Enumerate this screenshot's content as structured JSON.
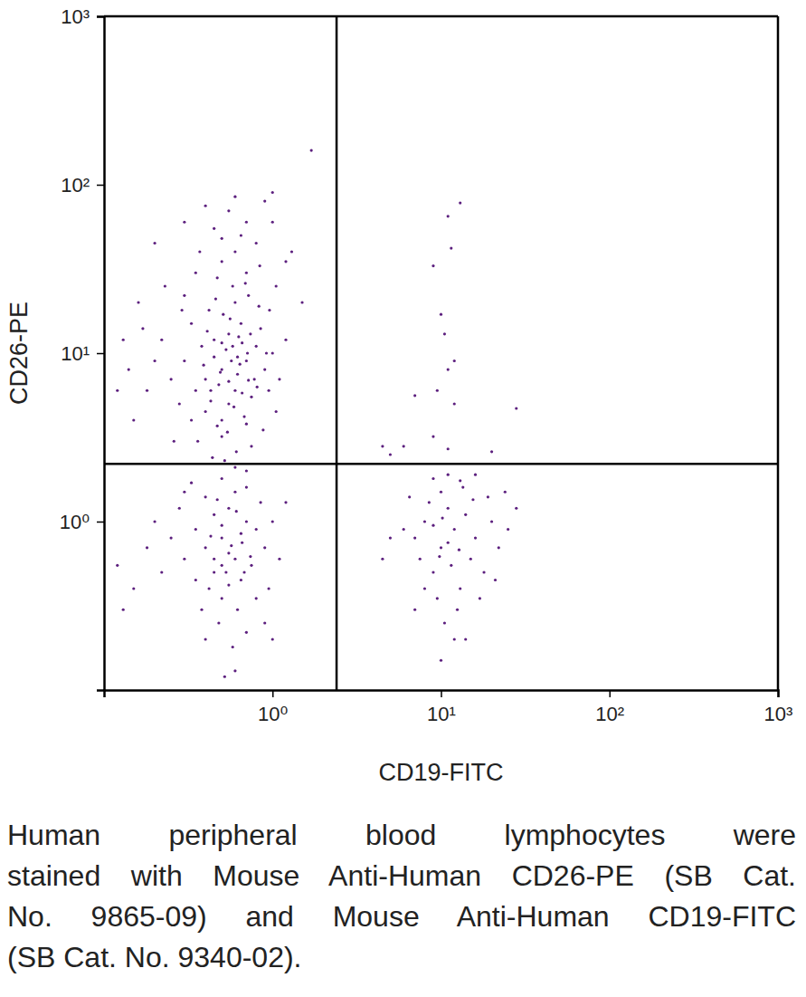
{
  "chart_data": {
    "type": "scatter",
    "x_label": "CD19-FITC",
    "y_label": "CD26-PE",
    "caption": [
      "Human peripheral blood lymphocytes were",
      "stained with Mouse Anti-Human CD26-PE (SB Cat.",
      "No. 9865-09) and Mouse Anti-Human CD19-FITC",
      "(SB Cat. No. 9340-02)."
    ],
    "log": true,
    "color": "#5c1f7e",
    "marker": "dot",
    "xlim": [
      0.1,
      1000
    ],
    "ylim": [
      0.1,
      1000
    ],
    "xticks": [
      {
        "value": 1,
        "label": "10⁰"
      },
      {
        "value": 10,
        "label": "10¹"
      },
      {
        "value": 100,
        "label": "10²"
      },
      {
        "value": 1000,
        "label": "10³"
      }
    ],
    "yticks": [
      {
        "value": 1,
        "label": "10⁰"
      },
      {
        "value": 10,
        "label": "10¹"
      },
      {
        "value": 100,
        "label": "10²"
      },
      {
        "value": 1000,
        "label": "10³"
      }
    ],
    "quadrant_x": 2.4,
    "quadrant_y": 2.2,
    "x": [
      0.5,
      0.6,
      0.45,
      0.7,
      0.55,
      0.4,
      0.65,
      0.8,
      0.5,
      0.35,
      0.6,
      0.75,
      0.9,
      0.45,
      0.55,
      0.5,
      0.7,
      0.4,
      0.3,
      0.62,
      0.48,
      0.85,
      0.58,
      0.7,
      0.42,
      0.53,
      0.66,
      0.38,
      0.95,
      1.0,
      0.28,
      0.25,
      0.22,
      0.33,
      0.6,
      0.5,
      0.8,
      0.45,
      0.7,
      0.55,
      0.4,
      0.9,
      1.0,
      0.65,
      0.35,
      0.3,
      0.2,
      0.18,
      0.15,
      0.17,
      0.72,
      0.47,
      0.83,
      0.56,
      0.61,
      0.44,
      0.75,
      0.36,
      0.52,
      0.88,
      1.05,
      1.1,
      1.2,
      1.05,
      1.2,
      0.78,
      0.68,
      0.43,
      0.57,
      0.63,
      0.51,
      0.74,
      0.39,
      0.47,
      0.59,
      0.81,
      0.92,
      0.33,
      0.26,
      0.55,
      0.49,
      0.64,
      0.71,
      0.41,
      0.58,
      0.46,
      0.69,
      0.37,
      0.84,
      0.96,
      0.29,
      0.23,
      0.13,
      0.16,
      0.14,
      0.2,
      0.3,
      0.6,
      0.5,
      1.0,
      1.3,
      1.5,
      1.7,
      0.12,
      0.54,
      0.66,
      0.43,
      0.72,
      0.5,
      0.62,
      0.5,
      0.6,
      0.45,
      0.7,
      0.55,
      0.4,
      0.65,
      0.8,
      0.5,
      0.35,
      0.6,
      0.75,
      0.9,
      0.45,
      0.55,
      0.5,
      0.7,
      0.4,
      0.3,
      0.62,
      0.48,
      0.85,
      0.58,
      0.7,
      0.42,
      0.53,
      0.66,
      0.38,
      0.95,
      1.0,
      0.28,
      0.25,
      0.22,
      0.33,
      0.6,
      0.5,
      0.8,
      0.45,
      0.7,
      0.55,
      0.4,
      0.9,
      1.1,
      0.65,
      0.35,
      0.2,
      0.18,
      0.15,
      0.12,
      0.13,
      0.52,
      0.6,
      0.47,
      0.57,
      0.43,
      0.74,
      0.61,
      0.5,
      0.68,
      0.3,
      1.2,
      1.0,
      10,
      12,
      8,
      15,
      9,
      11,
      13,
      7,
      10,
      14,
      9.5,
      11.5,
      6,
      16,
      18,
      12.5,
      8.5,
      10.5,
      13.5,
      7.5,
      20,
      22,
      25,
      28,
      5,
      4.5,
      9,
      11,
      12,
      10,
      14,
      17,
      19,
      6.5,
      8,
      11,
      9.8,
      12.8,
      10.2,
      15.5,
      7,
      13,
      24,
      21,
      16,
      9,
      11,
      13,
      11.5,
      9,
      10,
      10.5,
      12,
      11,
      7,
      9.5,
      12,
      28,
      9,
      11,
      4.5,
      6,
      5,
      20
    ],
    "values": [
      8,
      6,
      12,
      9,
      5,
      7,
      15,
      11,
      4,
      6,
      20,
      5.5,
      8,
      9.5,
      13,
      3.2,
      3.8,
      4.5,
      9,
      7.5,
      6.5,
      14,
      25,
      30,
      18,
      10.5,
      11.5,
      11,
      6,
      10,
      5,
      7,
      12,
      15,
      40,
      35,
      45,
      55,
      60,
      70,
      75,
      80,
      90,
      50,
      30,
      22,
      9,
      6,
      4,
      14,
      22,
      28,
      19,
      16,
      2.6,
      2.4,
      2.8,
      3,
      2.3,
      3.5,
      4.5,
      7,
      12,
      25,
      35,
      7,
      4.2,
      5.2,
      9,
      12.5,
      17,
      13,
      8.5,
      3.7,
      4.8,
      6.3,
      10,
      4,
      3,
      6.8,
      7.7,
      8.6,
      10,
      13.5,
      11,
      21,
      26,
      40,
      33,
      18,
      18,
      25,
      12,
      20,
      8,
      45,
      60,
      85,
      48,
      60,
      40,
      20,
      160,
      6,
      3.4,
      5.8,
      6,
      6.9,
      11.5,
      9.5,
      0.8,
      0.6,
      0.5,
      1.0,
      1.2,
      0.7,
      0.45,
      0.9,
      0.35,
      0.9,
      1.5,
      0.55,
      0.7,
      1.1,
      0.65,
      1.8,
      2.0,
      1.4,
      0.6,
      0.3,
      0.25,
      1.3,
      0.18,
      0.22,
      0.4,
      0.5,
      0.75,
      0.3,
      0.4,
      1.0,
      1.2,
      0.8,
      0.5,
      1.7,
      2.1,
      0.95,
      0.35,
      0.6,
      1.6,
      0.42,
      0.2,
      0.25,
      0.6,
      0.85,
      0.45,
      1.0,
      0.7,
      0.4,
      0.55,
      0.3,
      0.12,
      0.13,
      1.35,
      0.72,
      0.82,
      0.62,
      1.15,
      0.55,
      0.5,
      1.5,
      1.3,
      0.2,
      0.7,
      0.9,
      1.0,
      0.6,
      0.5,
      1.2,
      0.4,
      0.8,
      1.5,
      1.1,
      0.35,
      0.55,
      0.9,
      0.8,
      0.5,
      0.3,
      1.3,
      0.25,
      1.6,
      0.6,
      1.0,
      0.7,
      0.9,
      1.2,
      0.8,
      0.6,
      1.8,
      1.9,
      0.2,
      0.15,
      0.2,
      0.35,
      1.4,
      1.4,
      0.4,
      0.75,
      0.62,
      0.68,
      1.05,
      1.35,
      0.3,
      1.75,
      1.5,
      0.45,
      1.9,
      0.95,
      65,
      78,
      42,
      33,
      17,
      13,
      9,
      8,
      5.6,
      6,
      5,
      4.7,
      3.2,
      2.7,
      2.8,
      2.8,
      2.5,
      2.6
    ]
  }
}
